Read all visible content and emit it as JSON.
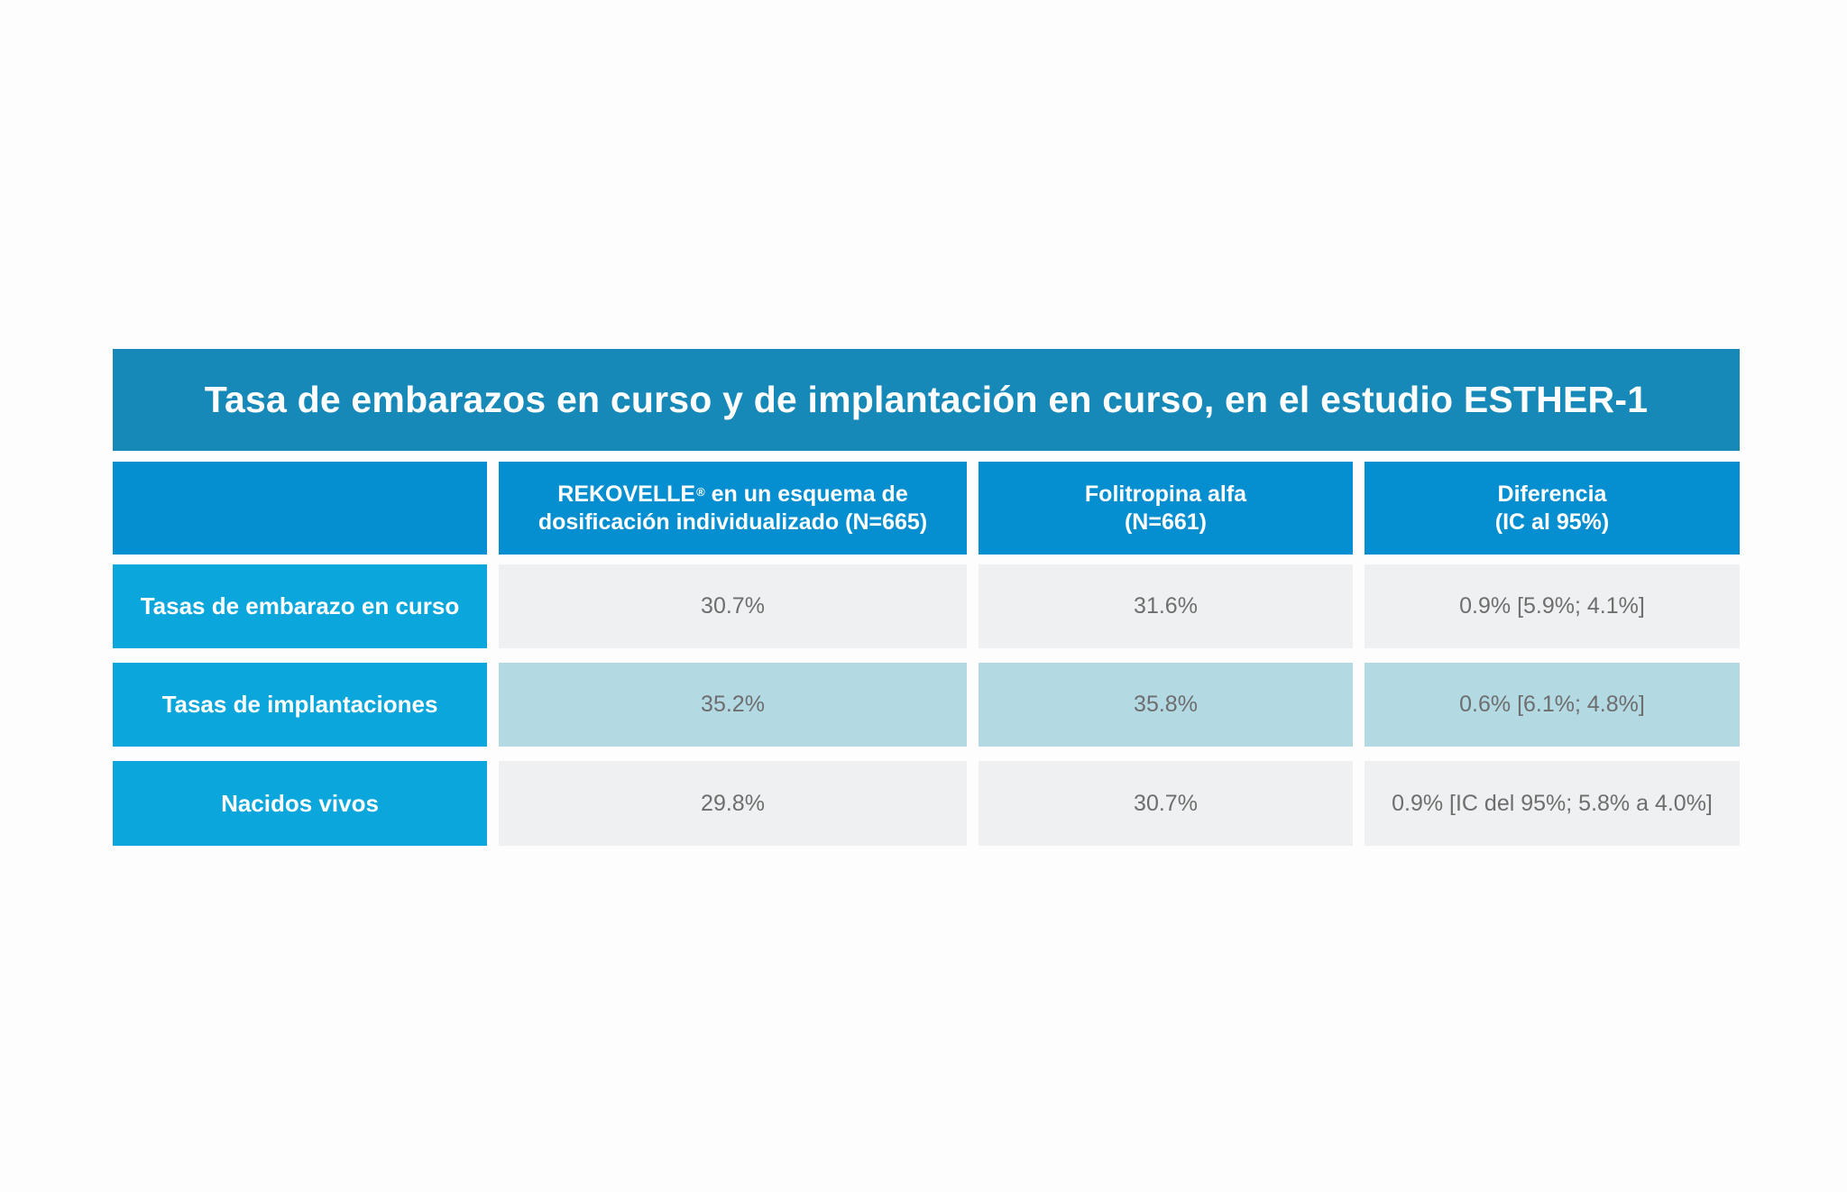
{
  "title": "Tasa de embarazos en curso y de implantación en curso, en el estudio ESTHER-1",
  "table": {
    "headers": {
      "col1_line1": "REKOVELLE",
      "col1_reg": "®",
      "col1_line1_rest": " en un esquema de",
      "col1_line2": "dosificación individualizado (N=665)",
      "col2_line1": "Folitropina alfa",
      "col2_line2": "(N=661)",
      "col3_line1": "Diferencia",
      "col3_line2": "(IC al 95%)"
    },
    "rows": [
      {
        "label": "Tasas de embarazo en curso",
        "rekovelle": "30.7%",
        "folitropina": "31.6%",
        "diferencia": "0.9% [5.9%; 4.1%]"
      },
      {
        "label": "Tasas de implantaciones",
        "rekovelle": "35.2%",
        "folitropina": "35.8%",
        "diferencia": "0.6% [6.1%; 4.8%]"
      },
      {
        "label": "Nacidos vivos",
        "rekovelle": "29.8%",
        "folitropina": "30.7%",
        "diferencia": "0.9% [IC del 95%; 5.8% a 4.0%]"
      }
    ]
  },
  "colors": {
    "title_bg": "#1789b8",
    "header_bg": "#058fd1",
    "row_label_bg": "#0aa6dc",
    "cell_gray": "#eff0f1",
    "cell_blue": "#b3d9e3"
  }
}
